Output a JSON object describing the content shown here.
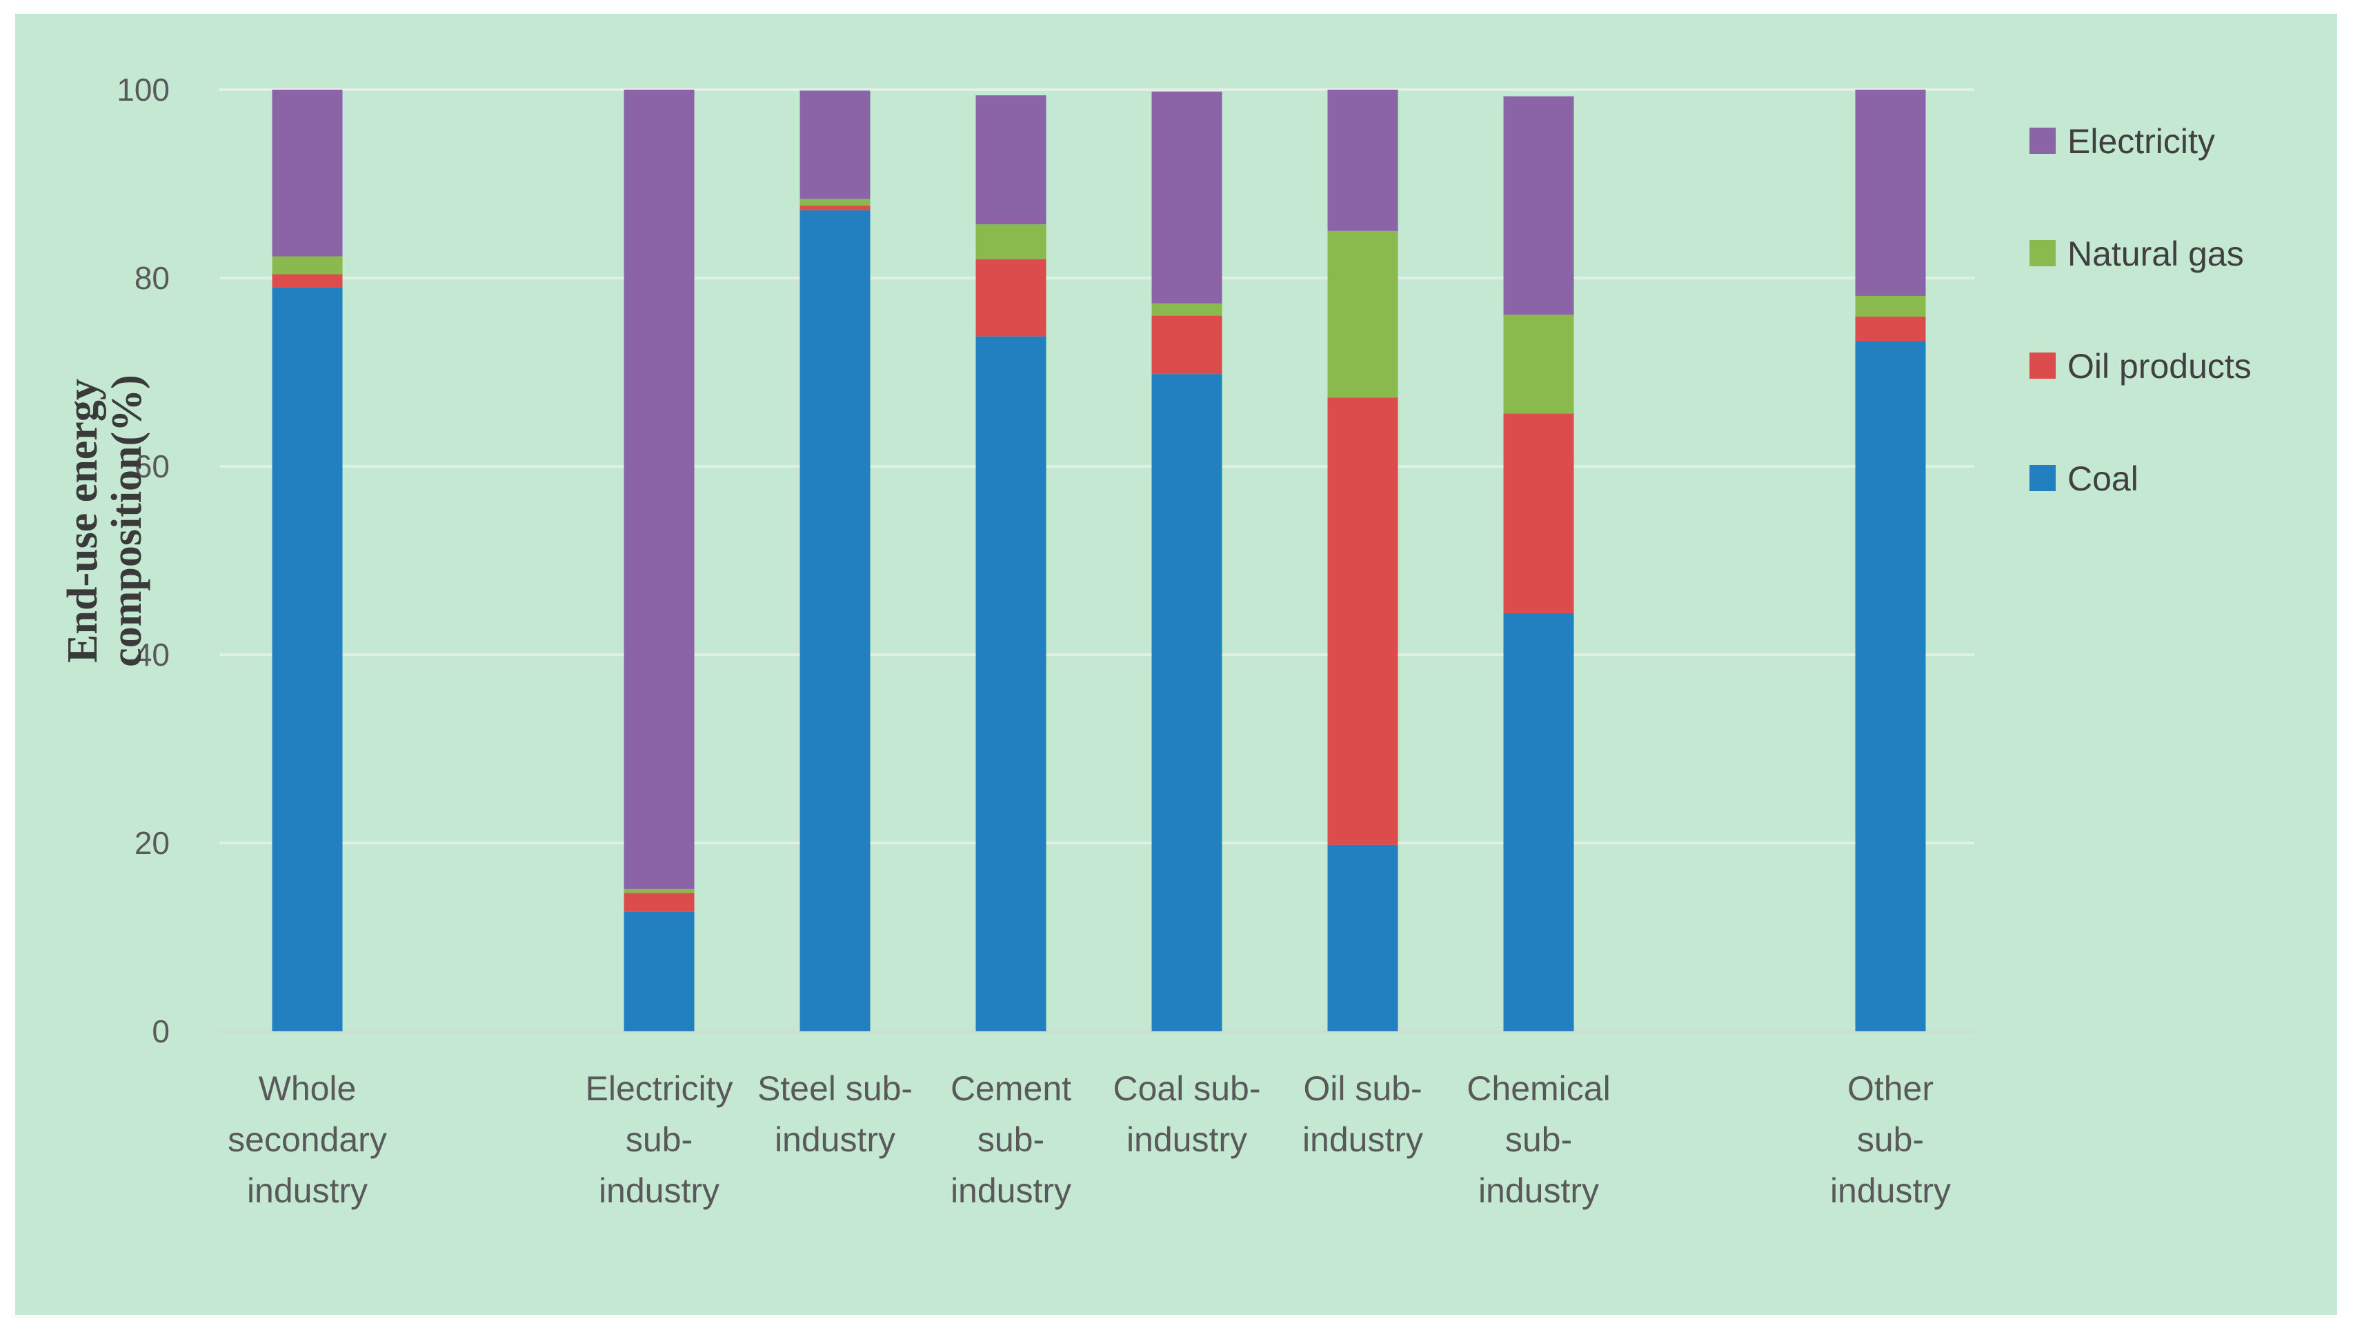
{
  "chart_data": {
    "type": "bar",
    "stacked": true,
    "title": "",
    "xlabel": "",
    "ylabel": [
      "End-use energy",
      "composition(%)"
    ],
    "ylim": [
      0,
      100
    ],
    "yticks": [
      0,
      20,
      40,
      60,
      80,
      100
    ],
    "grid": true,
    "legend_position": "right",
    "categories": [
      [
        "Whole",
        "secondary",
        "industry"
      ],
      [],
      [
        "Electricity",
        "sub-",
        "industry"
      ],
      [
        "Steel sub-",
        "industry"
      ],
      [
        "Cement",
        "sub-",
        "industry"
      ],
      [
        "Coal sub-",
        "industry"
      ],
      [
        "Oil sub-",
        "industry"
      ],
      [
        "Chemical",
        "sub-",
        "industry"
      ],
      [],
      [
        "Other",
        "sub-",
        "industry"
      ]
    ],
    "series": [
      {
        "name": "Coal",
        "color": "#2280c1",
        "values": [
          79.0,
          null,
          12.7,
          87.2,
          73.8,
          69.8,
          19.8,
          44.4,
          null,
          73.3
        ]
      },
      {
        "name": "Oil products",
        "color": "#dc4c4c",
        "values": [
          1.4,
          null,
          2.0,
          0.5,
          8.2,
          6.2,
          47.5,
          21.2,
          null,
          2.6
        ]
      },
      {
        "name": "Natural gas",
        "color": "#8aba4e",
        "values": [
          1.9,
          null,
          0.4,
          0.7,
          3.7,
          1.3,
          17.7,
          10.5,
          null,
          2.2
        ]
      },
      {
        "name": "Electricity",
        "color": "#8a64a6",
        "values": [
          17.7,
          null,
          84.9,
          11.5,
          13.7,
          22.5,
          15.0,
          23.2,
          null,
          21.9
        ]
      }
    ]
  }
}
